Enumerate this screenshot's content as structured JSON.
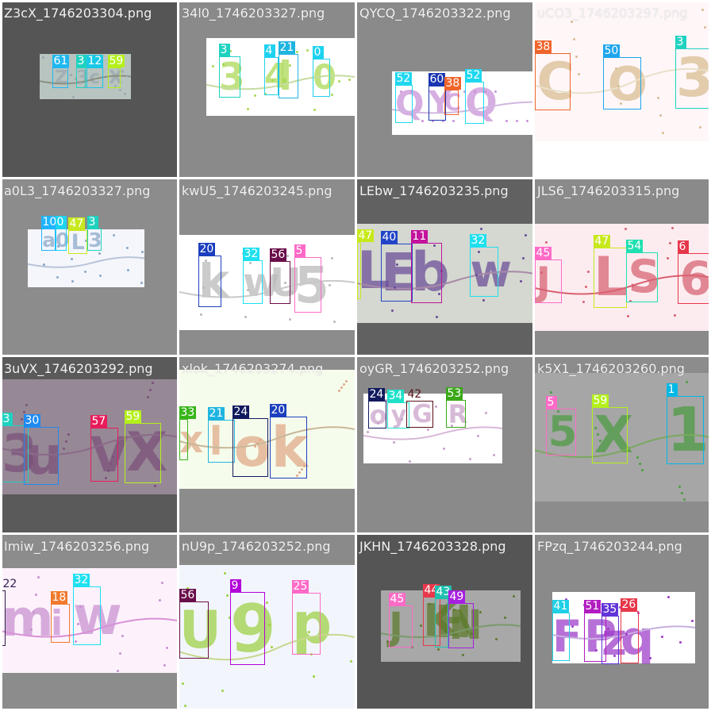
{
  "tiles": [
    {
      "title": "Z3cX_1746203304.png",
      "labels": [
        "61",
        "3",
        "12",
        "59"
      ],
      "glyphs": [
        "Z",
        "3",
        "c",
        "X"
      ]
    },
    {
      "title": "34l0_1746203327.png",
      "labels": [
        "3",
        "4",
        "21",
        "0"
      ],
      "glyphs": [
        "3",
        "4",
        "l",
        "0"
      ]
    },
    {
      "title": "QYCQ_1746203322.png",
      "labels": [
        "52",
        "60",
        "38",
        "52"
      ],
      "glyphs": [
        "Q",
        "Y",
        "C",
        "Q"
      ]
    },
    {
      "title": "uCO3_1746203297.png",
      "labels": [
        "38",
        "50",
        "3"
      ],
      "glyphs": [
        "C",
        "O",
        "3"
      ]
    },
    {
      "title": "a0L3_1746203327.png",
      "labels": [
        "10",
        "0",
        "47",
        "3"
      ],
      "glyphs": [
        "a",
        "0",
        "L",
        "3"
      ]
    },
    {
      "title": "kwU5_1746203245.png",
      "labels": [
        "20",
        "32",
        "56",
        "5"
      ],
      "glyphs": [
        "k",
        "w",
        "U",
        "5"
      ]
    },
    {
      "title": "LEbw_1746203235.png",
      "labels": [
        "47",
        "40",
        "11",
        "32"
      ],
      "glyphs": [
        "L",
        "E",
        "b",
        "w"
      ]
    },
    {
      "title": "JLS6_1746203315.png",
      "labels": [
        "45",
        "47",
        "54",
        "6"
      ],
      "glyphs": [
        "J",
        "L",
        "S",
        "6"
      ]
    },
    {
      "title": "3uVX_1746203292.png",
      "labels": [
        "3",
        "30",
        "57",
        "59"
      ],
      "glyphs": [
        "3",
        "u",
        "V",
        "X"
      ]
    },
    {
      "title": "xlok_1746203274.png",
      "labels": [
        "33",
        "21",
        "24",
        "20"
      ],
      "glyphs": [
        "x",
        "l",
        "o",
        "k"
      ]
    },
    {
      "title": "oyGR_1746203252.png",
      "labels": [
        "24",
        "34",
        "42",
        "53"
      ],
      "glyphs": [
        "o",
        "y",
        "G",
        "R"
      ]
    },
    {
      "title": "k5X1_1746203260.png",
      "labels": [
        "5",
        "59",
        "1"
      ],
      "glyphs": [
        "5",
        "X",
        "1"
      ]
    },
    {
      "title": "Imiw_1746203256.png",
      "labels": [
        "22",
        "18",
        "32"
      ],
      "glyphs": [
        "m",
        "i",
        "w"
      ]
    },
    {
      "title": "nU9p_1746203252.png",
      "labels": [
        "56",
        "9",
        "25"
      ],
      "glyphs": [
        "U",
        "9",
        "p"
      ]
    },
    {
      "title": "JKHN_1746203328.png",
      "labels": [
        "45",
        "44",
        "43",
        "49"
      ],
      "glyphs": [
        "J",
        "K",
        "H",
        "N"
      ]
    },
    {
      "title": "FPzq_1746203244.png",
      "labels": [
        "41",
        "51",
        "35",
        "26"
      ],
      "glyphs": [
        "F",
        "P",
        "z",
        "q"
      ]
    }
  ],
  "label_colors": {
    "1": "#00b8e6",
    "3": "#1fd2c0",
    "5": "#ff6ac7",
    "6": "#e8374a",
    "9": "#b200d8",
    "10": "#1fb4ff",
    "11": "#c3139b",
    "12": "#19c8e6",
    "18": "#f07a2d",
    "20": "#1c3fbf",
    "21": "#1fb5e0",
    "22": "#2d1d4a",
    "24": "#111a5e",
    "25": "#ff6ac7",
    "26": "#e8374a",
    "30": "#1f8bf0",
    "32": "#1ee0f0",
    "33": "#39b51a",
    "34": "#1fe0c8",
    "35": "#6235d8",
    "38": "#f0642a",
    "40": "#2244c8",
    "41": "#1fd0e6",
    "42": "#5a1018",
    "43": "#1fc0b0",
    "44": "#e8374a",
    "45": "#ff6ac7",
    "47": "#c8e81c",
    "49": "#a61ee0",
    "50": "#1fa6ee",
    "51": "#b21cc0",
    "52": "#1fd8f0",
    "53": "#3aa818",
    "54": "#1fe0b0",
    "56": "#6a0e4a",
    "57": "#e81c5a",
    "59": "#b4f01c",
    "60": "#1a36b0",
    "61": "#1fb8f0"
  },
  "glyph_colors": [
    "#9aa8b0",
    "#a8d850",
    "#c890d8",
    "#d8bc90",
    "#8aa8c8",
    "#b8b8b8",
    "#6a4c98",
    "#d86070",
    "#7a507a",
    "#e0a888",
    "#c8a0c8",
    "#4c9c40",
    "#c890d0",
    "#9cd040",
    "#5c7a2a",
    "#9c3ac8"
  ]
}
